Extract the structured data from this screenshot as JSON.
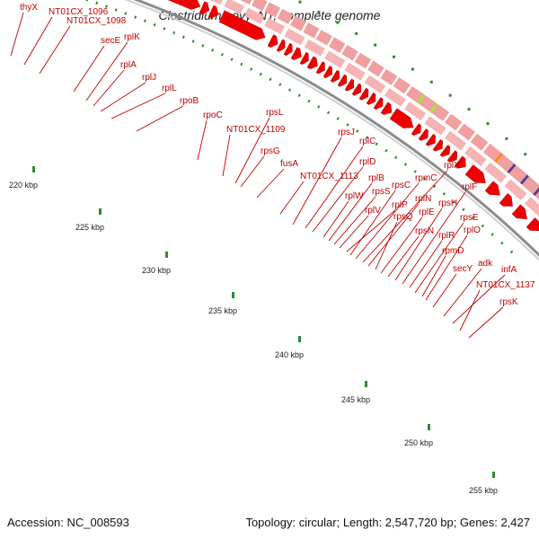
{
  "title": "Clostridium novyi NT, complete genome",
  "footer": {
    "accession": "Accession: NC_008593",
    "summary": "Topology: circular; Length: 2,547,720 bp; Genes: 2,427"
  },
  "colors": {
    "gene_label": "#c00000",
    "gene_arrow": "#ee0000",
    "cds_pink": "#f0a0a0",
    "cog_orange": "#ff8c00",
    "cog_cyan": "#22aaee",
    "cog_green": "#99ee22",
    "cog_purple": "#4b3b8f",
    "tick": "#2e8b2e",
    "backbone": "#9a9a9a"
  },
  "tick_labels": [
    {
      "text": "220 kbp"
    },
    {
      "text": "225 kbp"
    },
    {
      "text": "230 kbp"
    },
    {
      "text": "235 kbp"
    },
    {
      "text": "240 kbp"
    },
    {
      "text": "245 kbp"
    },
    {
      "text": "250 kbp"
    },
    {
      "text": "255 kbp"
    }
  ],
  "gene_labels": [
    {
      "text": "thyX"
    },
    {
      "text": "NT01CX_1096"
    },
    {
      "text": "NT01CX_1098"
    },
    {
      "text": "secE"
    },
    {
      "text": "rplK"
    },
    {
      "text": "rplA"
    },
    {
      "text": "rplJ"
    },
    {
      "text": "rplL"
    },
    {
      "text": "rpoB"
    },
    {
      "text": "rpoC"
    },
    {
      "text": "NT01CX_1109"
    },
    {
      "text": "rpsL"
    },
    {
      "text": "rpsG"
    },
    {
      "text": "fusA"
    },
    {
      "text": "NT01CX_1113"
    },
    {
      "text": "rpsJ"
    },
    {
      "text": "rplC"
    },
    {
      "text": "rplD"
    },
    {
      "text": "rplW"
    },
    {
      "text": "rplB"
    },
    {
      "text": "rpsS"
    },
    {
      "text": "rplV"
    },
    {
      "text": "rplP"
    },
    {
      "text": "rpsC"
    },
    {
      "text": "rpmC"
    },
    {
      "text": "rplX"
    },
    {
      "text": "rplN"
    },
    {
      "text": "rpsQ"
    },
    {
      "text": "rplE"
    },
    {
      "text": "rpsN"
    },
    {
      "text": "rpsH"
    },
    {
      "text": "rplF"
    },
    {
      "text": "rplR"
    },
    {
      "text": "rpsE"
    },
    {
      "text": "rpmD"
    },
    {
      "text": "rplO"
    },
    {
      "text": "secY"
    },
    {
      "text": "adk"
    },
    {
      "text": "infA"
    },
    {
      "text": "NT01CX_1137"
    },
    {
      "text": "rpsK"
    }
  ]
}
